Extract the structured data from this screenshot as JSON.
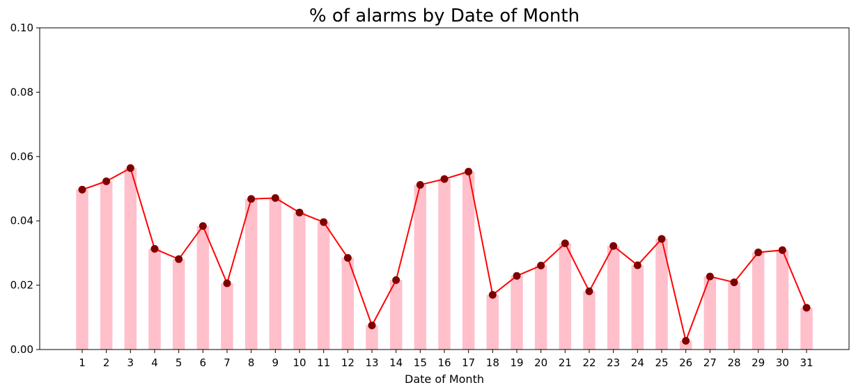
{
  "chart_data": {
    "type": "bar",
    "title": "% of alarms by Date of Month",
    "xlabel": "Date of Month",
    "ylabel": "",
    "ylim": [
      0,
      0.1
    ],
    "yticks": [
      "0.00",
      "0.02",
      "0.04",
      "0.06",
      "0.08",
      "0.10"
    ],
    "categories": [
      "1",
      "2",
      "3",
      "4",
      "5",
      "6",
      "7",
      "8",
      "9",
      "10",
      "11",
      "12",
      "13",
      "14",
      "15",
      "16",
      "17",
      "18",
      "19",
      "20",
      "21",
      "22",
      "23",
      "24",
      "25",
      "26",
      "27",
      "28",
      "29",
      "30",
      "31"
    ],
    "series": [
      {
        "type": "bar",
        "color": "#ffc0cb",
        "values": [
          0.0497,
          0.0523,
          0.0564,
          0.0313,
          0.0281,
          0.0384,
          0.0206,
          0.0468,
          0.0471,
          0.0426,
          0.0396,
          0.0285,
          0.0075,
          0.0216,
          0.0512,
          0.053,
          0.0553,
          0.017,
          0.0229,
          0.0261,
          0.033,
          0.0181,
          0.0322,
          0.0262,
          0.0344,
          0.0027,
          0.0227,
          0.0209,
          0.0302,
          0.0309,
          0.013
        ]
      },
      {
        "type": "line",
        "color": "#ff0000",
        "marker_color": "#800000",
        "values": [
          0.0497,
          0.0523,
          0.0564,
          0.0313,
          0.0281,
          0.0384,
          0.0206,
          0.0468,
          0.0471,
          0.0426,
          0.0396,
          0.0285,
          0.0075,
          0.0216,
          0.0512,
          0.053,
          0.0553,
          0.017,
          0.0229,
          0.0261,
          0.033,
          0.0181,
          0.0322,
          0.0262,
          0.0344,
          0.0027,
          0.0227,
          0.0209,
          0.0302,
          0.0309,
          0.013
        ]
      }
    ],
    "grid": false
  }
}
